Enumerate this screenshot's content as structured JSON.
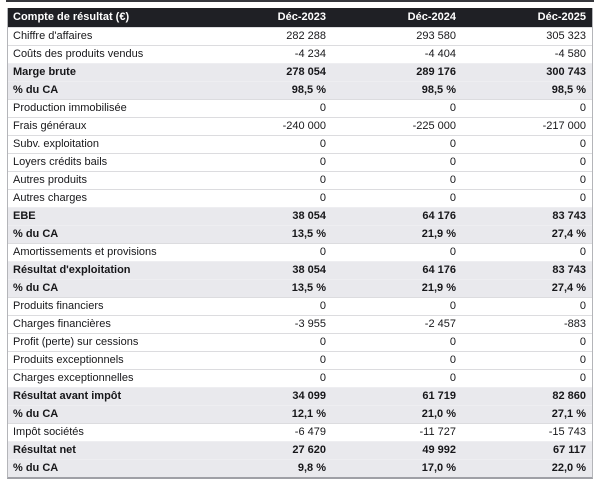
{
  "chart_data": {
    "type": "table",
    "title": "Compte de résultat (€)",
    "columns": [
      "Déc-2023",
      "Déc-2024",
      "Déc-2025"
    ],
    "rows": [
      {
        "label": "Chiffre d'affaires",
        "values": [
          "282 288",
          "293 580",
          "305 323"
        ],
        "emphasis": false
      },
      {
        "label": "Coûts des produits vendus",
        "values": [
          "-4 234",
          "-4 404",
          "-4 580"
        ],
        "emphasis": false
      },
      {
        "label": "Marge brute",
        "values": [
          "278 054",
          "289 176",
          "300 743"
        ],
        "emphasis": true
      },
      {
        "label": "% du CA",
        "values": [
          "98,5 %",
          "98,5 %",
          "98,5 %"
        ],
        "emphasis": true
      },
      {
        "label": "Production immobilisée",
        "values": [
          "0",
          "0",
          "0"
        ],
        "emphasis": false
      },
      {
        "label": "Frais généraux",
        "values": [
          "-240 000",
          "-225 000",
          "-217 000"
        ],
        "emphasis": false
      },
      {
        "label": "Subv. exploitation",
        "values": [
          "0",
          "0",
          "0"
        ],
        "emphasis": false
      },
      {
        "label": "Loyers crédits bails",
        "values": [
          "0",
          "0",
          "0"
        ],
        "emphasis": false
      },
      {
        "label": "Autres produits",
        "values": [
          "0",
          "0",
          "0"
        ],
        "emphasis": false
      },
      {
        "label": "Autres charges",
        "values": [
          "0",
          "0",
          "0"
        ],
        "emphasis": false
      },
      {
        "label": "EBE",
        "values": [
          "38 054",
          "64 176",
          "83 743"
        ],
        "emphasis": true
      },
      {
        "label": "% du CA",
        "values": [
          "13,5 %",
          "21,9 %",
          "27,4 %"
        ],
        "emphasis": true
      },
      {
        "label": "Amortissements et provisions",
        "values": [
          "0",
          "0",
          "0"
        ],
        "emphasis": false
      },
      {
        "label": "Résultat d'exploitation",
        "values": [
          "38 054",
          "64 176",
          "83 743"
        ],
        "emphasis": true
      },
      {
        "label": "% du CA",
        "values": [
          "13,5 %",
          "21,9 %",
          "27,4 %"
        ],
        "emphasis": true
      },
      {
        "label": "Produits financiers",
        "values": [
          "0",
          "0",
          "0"
        ],
        "emphasis": false
      },
      {
        "label": "Charges financières",
        "values": [
          "-3 955",
          "-2 457",
          "-883"
        ],
        "emphasis": false
      },
      {
        "label": "Profit (perte) sur cessions",
        "values": [
          "0",
          "0",
          "0"
        ],
        "emphasis": false
      },
      {
        "label": "Produits exceptionnels",
        "values": [
          "0",
          "0",
          "0"
        ],
        "emphasis": false
      },
      {
        "label": "Charges exceptionnelles",
        "values": [
          "0",
          "0",
          "0"
        ],
        "emphasis": false
      },
      {
        "label": "Résultat avant impôt",
        "values": [
          "34 099",
          "61 719",
          "82 860"
        ],
        "emphasis": true
      },
      {
        "label": "% du CA",
        "values": [
          "12,1 %",
          "21,0 %",
          "27,1 %"
        ],
        "emphasis": true
      },
      {
        "label": "Impôt sociétés",
        "values": [
          "-6 479",
          "-11 727",
          "-15 743"
        ],
        "emphasis": false
      },
      {
        "label": "Résultat net",
        "values": [
          "27 620",
          "49 992",
          "67 117"
        ],
        "emphasis": true
      },
      {
        "label": "% du CA",
        "values": [
          "9,8 %",
          "17,0 %",
          "22,0 %"
        ],
        "emphasis": true
      }
    ]
  },
  "style": {
    "header_background": "#1f2025",
    "header_text_color": "#ffffff",
    "emphasis_row_background": "#e9e9ed",
    "row_separator_color": "#dcdcdf",
    "outer_border_color": "#b4b5b9",
    "bottom_border_color": "#9fa0a6",
    "top_divider_color": "#36373c",
    "body_text_color": "#17171a"
  }
}
